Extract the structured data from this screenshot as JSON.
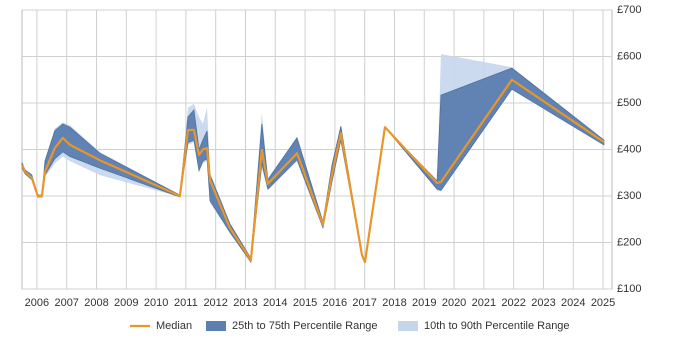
{
  "chart_data": {
    "type": "range-line",
    "x": [
      2005.5,
      2005.6,
      2005.83,
      2006.03,
      2006.17,
      2006.27,
      2006.6,
      2006.87,
      2007.11,
      2008.11,
      2010.8,
      2011.07,
      2011.27,
      2011.44,
      2011.57,
      2011.71,
      2011.81,
      2012.48,
      2013.18,
      2013.55,
      2013.75,
      2014.73,
      2015.6,
      2015.9,
      2016.2,
      2016.91,
      2017.01,
      2017.68,
      2019.43,
      2019.56,
      2021.94,
      2025.03
    ],
    "series": [
      {
        "name": "Median",
        "color": "#e8962a",
        "values": [
          367,
          352,
          339,
          300,
          300,
          352,
          403,
          425,
          410,
          377,
          300,
          442,
          442,
          388,
          400,
          403,
          334,
          231,
          162,
          399,
          326,
          392,
          238,
          345,
          435,
          173,
          158,
          448,
          328,
          330,
          550,
          416
        ]
      },
      {
        "name": "25th to 75th Percentile Range",
        "color": "#5b7fb0",
        "low": [
          360,
          348,
          335,
          298,
          298,
          345,
          380,
          395,
          385,
          360,
          298,
          415,
          420,
          355,
          375,
          380,
          290,
          222,
          158,
          370,
          315,
          378,
          232,
          330,
          420,
          173,
          158,
          448,
          315,
          312,
          530,
          410
        ],
        "high": [
          372,
          356,
          345,
          302,
          302,
          375,
          440,
          455,
          448,
          392,
          302,
          470,
          485,
          400,
          420,
          440,
          345,
          240,
          166,
          455,
          335,
          425,
          244,
          365,
          450,
          173,
          158,
          448,
          332,
          517,
          575,
          420
        ]
      },
      {
        "name": "10th to 90th Percentile Range",
        "color": "#c5d6ec",
        "low": [
          358,
          346,
          333,
          297,
          297,
          340,
          370,
          385,
          375,
          345,
          298,
          410,
          415,
          350,
          370,
          375,
          285,
          220,
          156,
          360,
          312,
          375,
          230,
          325,
          418,
          173,
          158,
          448,
          312,
          310,
          528,
          408
        ],
        "high": [
          374,
          358,
          347,
          303,
          303,
          378,
          445,
          458,
          452,
          395,
          302,
          490,
          498,
          470,
          455,
          490,
          350,
          242,
          168,
          480,
          338,
          428,
          246,
          370,
          452,
          173,
          158,
          448,
          335,
          605,
          577,
          422
        ]
      }
    ],
    "xlim": [
      2005.5,
      2025.3
    ],
    "xticks": [
      2006,
      2007,
      2008,
      2009,
      2010,
      2011,
      2012,
      2013,
      2014,
      2015,
      2016,
      2017,
      2018,
      2019,
      2020,
      2021,
      2022,
      2023,
      2024,
      2025
    ],
    "ylim": [
      100,
      700
    ],
    "yticks": [
      {
        "value": 100,
        "label": "£100"
      },
      {
        "value": 200,
        "label": "£200"
      },
      {
        "value": 300,
        "label": "£300"
      },
      {
        "value": 400,
        "label": "£400"
      },
      {
        "value": 500,
        "label": "£500"
      },
      {
        "value": 600,
        "label": "£600"
      },
      {
        "value": 700,
        "label": "£700"
      }
    ],
    "grid": true,
    "legend": "bottom"
  }
}
